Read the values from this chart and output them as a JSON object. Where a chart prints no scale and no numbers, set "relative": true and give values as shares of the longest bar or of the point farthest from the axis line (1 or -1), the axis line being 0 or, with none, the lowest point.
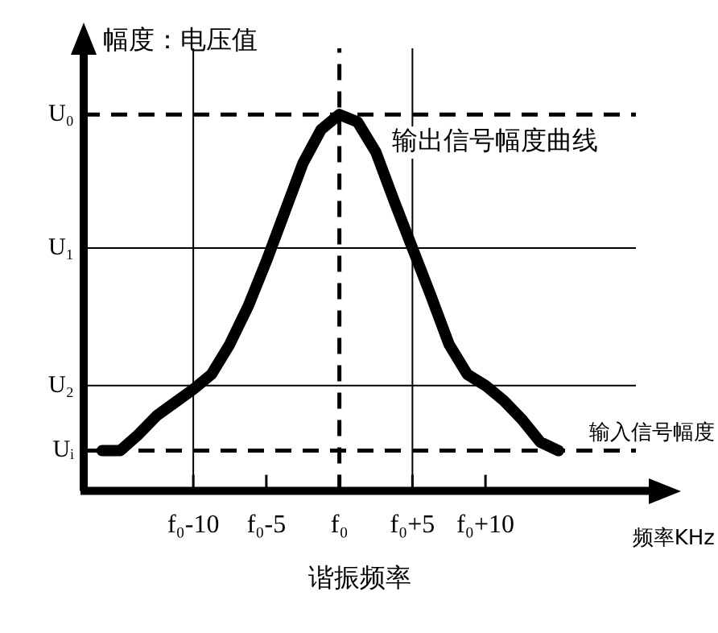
{
  "chart_data": {
    "type": "line",
    "relative": true,
    "ylabel": "幅度：电压值",
    "xlabel": "谐振频率",
    "categories": [
      null,
      null,
      null,
      null,
      null,
      null,
      "f₀-10",
      null,
      null,
      null,
      "f₀-5",
      null,
      null,
      null,
      "f₀",
      null,
      null,
      null,
      "f₀+5",
      null,
      null,
      null,
      "f₀+10",
      null,
      null,
      null,
      null,
      null,
      null,
      null,
      null,
      null,
      null
    ],
    "series": [
      {
        "name": "输出信号幅度曲线",
        "color": "#000000",
        "values": [
          null,
          0.107,
          0.107,
          0.15,
          0.2,
          0.235,
          0.27,
          0.31,
          0.39,
          0.49,
          0.61,
          0.74,
          0.87,
          0.96,
          1,
          0.98,
          0.9,
          0.77,
          0.645,
          0.52,
          0.39,
          0.31,
          0.28,
          0.24,
          0.19,
          0.13,
          0.107,
          null,
          null,
          null,
          null,
          null,
          null
        ]
      }
    ],
    "ref_lines": [
      {
        "axis": "y",
        "value": 1,
        "label": "U₀",
        "line_style": "dashed"
      },
      {
        "axis": "y",
        "value": 0.645,
        "label": "U₁",
        "line_style": "solid"
      },
      {
        "axis": "y",
        "value": 0.28,
        "label": "U₂",
        "line_style": "solid"
      },
      {
        "axis": "y",
        "value": 0.107,
        "label": "Uᵢ",
        "line_style": "dashed"
      },
      {
        "axis": "x",
        "value": "f₀-10",
        "line_style": "solid"
      },
      {
        "axis": "x",
        "value": "f₀",
        "line_style": "dashed"
      },
      {
        "axis": "x",
        "value": "f₀+5",
        "line_style": "solid"
      }
    ],
    "annotations": [
      "输入信号幅度",
      "频率KHz"
    ],
    "grid": false,
    "legend": false,
    "marker": "none",
    "line_style": "solid"
  }
}
